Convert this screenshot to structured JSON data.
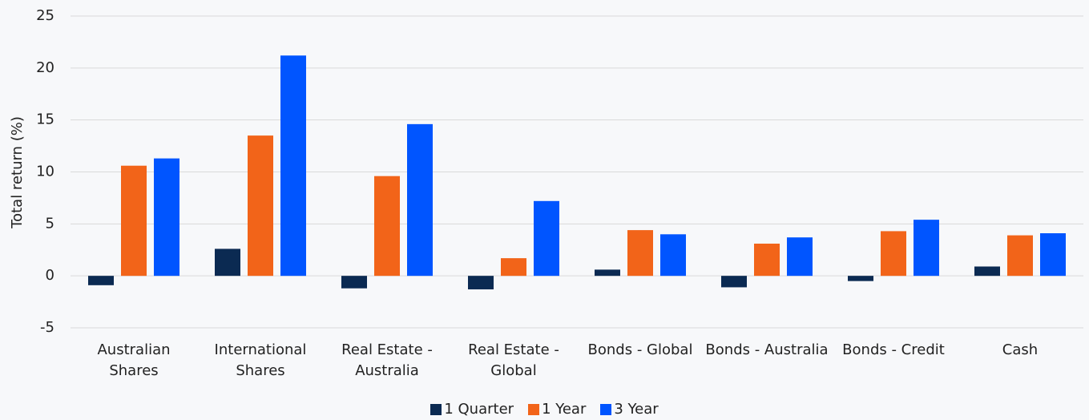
{
  "chart_data": {
    "type": "bar",
    "y_label": "Total return (%)",
    "categories": [
      "Australian Shares",
      "International Shares",
      "Real Estate - Australia",
      "Real Estate - Global",
      "Bonds - Global",
      "Bonds - Australia",
      "Bonds - Credit",
      "Cash"
    ],
    "series": [
      {
        "name": "1 Quarter",
        "color": "#0b2a52",
        "values": [
          -0.9,
          2.6,
          -1.2,
          -1.3,
          0.6,
          -1.1,
          -0.5,
          0.9
        ]
      },
      {
        "name": "1 Year",
        "color": "#f26419",
        "values": [
          10.6,
          13.5,
          9.6,
          1.7,
          4.4,
          3.1,
          4.3,
          3.9
        ]
      },
      {
        "name": "3 Year",
        "color": "#0055ff",
        "values": [
          11.3,
          21.2,
          14.6,
          7.2,
          4.0,
          3.7,
          5.4,
          4.1
        ]
      }
    ],
    "ylim": [
      -5,
      25
    ],
    "yticks": [
      -5,
      0,
      5,
      10,
      15,
      20,
      25
    ],
    "grid": true,
    "legend": "bottom"
  }
}
